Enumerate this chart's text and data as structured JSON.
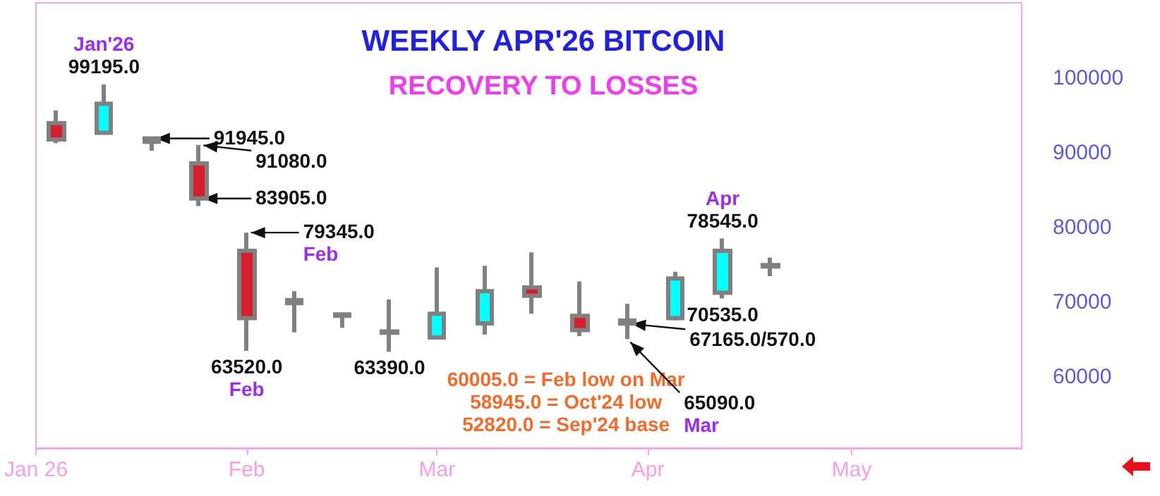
{
  "chart_data": {
    "type": "candlestick",
    "title": "WEEKLY APR'26 BITCOIN",
    "subtitle": "RECOVERY TO LOSSES",
    "x": [
      "2026-01-04",
      "2026-01-11",
      "2026-01-18",
      "2026-01-25",
      "2026-02-01",
      "2026-02-08",
      "2026-02-15",
      "2026-02-22",
      "2026-03-01",
      "2026-03-08",
      "2026-03-15",
      "2026-03-22",
      "2026-03-29",
      "2026-04-05",
      "2026-04-12",
      "2026-04-19"
    ],
    "ohlc": [
      [
        94000,
        95700,
        91300,
        91800
      ],
      [
        92700,
        99195,
        92700,
        96600
      ],
      [
        91500,
        92000,
        90300,
        91945
      ],
      [
        88600,
        91080,
        82900,
        83905
      ],
      [
        76900,
        79345,
        63520,
        67900
      ],
      [
        70300,
        71500,
        66000,
        69900
      ],
      [
        68400,
        68400,
        66600,
        68200
      ],
      [
        66100,
        70400,
        63390,
        65950
      ],
      [
        65300,
        74700,
        65300,
        68500
      ],
      [
        67200,
        74900,
        65700,
        71500
      ],
      [
        72000,
        76700,
        68500,
        70900
      ],
      [
        68200,
        72800,
        65500,
        66300
      ],
      [
        67165,
        69800,
        65090,
        67570
      ],
      [
        67900,
        74100,
        67600,
        73200
      ],
      [
        71300,
        78545,
        70535,
        76900
      ],
      [
        74800,
        76000,
        73500,
        75000
      ]
    ],
    "colors": [
      "#d81e2c",
      "#00ffff",
      "#00ffff",
      "#d81e2c",
      "#d81e2c",
      "#d81e2c",
      "#d81e2c",
      "#d81e2c",
      "#00ffff",
      "#00ffff",
      "#d81e2c",
      "#d81e2c",
      "#00ffff",
      "#00ffff",
      "#00ffff",
      "#00ffff"
    ],
    "xlim": [
      "2026-01-01",
      "2026-05-26"
    ],
    "xticks": [
      {
        "value": "2026-01-01",
        "label": "Jan 26"
      },
      {
        "value": "2026-02-01",
        "label": "Feb"
      },
      {
        "value": "2026-03-01",
        "label": "Mar"
      },
      {
        "value": "2026-04-01",
        "label": "Apr"
      },
      {
        "value": "2026-05-01",
        "label": "May"
      }
    ],
    "ylim": [
      50500,
      110100
    ],
    "yticks": [
      60000,
      70000,
      80000,
      90000,
      100000
    ],
    "annotations": [
      "60005.0 = Feb low on Mar",
      "58945.0 = Oct'24 low",
      "52820.0 = Sep'24 base",
      {
        "text": "99195.0",
        "x": "2026-01-11",
        "y": 99195
      },
      {
        "text": "Jan'26",
        "x": "2026-01-11",
        "y": 99195
      },
      {
        "text": "91945.0",
        "x": "2026-01-18",
        "y": 91945
      },
      {
        "text": "91080.0",
        "x": "2026-01-25",
        "y": 91080
      },
      {
        "text": "83905.0",
        "x": "2026-01-25",
        "y": 83905
      },
      {
        "text": "79345.0",
        "x": "2026-02-01",
        "y": 79345
      },
      {
        "text": "Feb",
        "x": "2026-02-01",
        "y": 79345
      },
      {
        "text": "63520.0",
        "x": "2026-02-01",
        "y": 63520
      },
      {
        "text": "Feb",
        "x": "2026-02-01",
        "y": 63520
      },
      {
        "text": "63390.0",
        "x": "2026-02-22",
        "y": 63390
      },
      {
        "text": "78545.0",
        "x": "2026-04-12",
        "y": 78545
      },
      {
        "text": "Apr",
        "x": "2026-04-12",
        "y": 78545
      },
      {
        "text": "70535.0",
        "x": "2026-04-12",
        "y": 70535
      },
      {
        "text": "67165.0/570.0",
        "x": "2026-03-29",
        "y": 67165
      },
      {
        "text": "65090.0",
        "x": "2026-03-29",
        "y": 65090
      },
      {
        "text": "Mar",
        "x": "2026-03-29",
        "y": 65090
      }
    ]
  }
}
